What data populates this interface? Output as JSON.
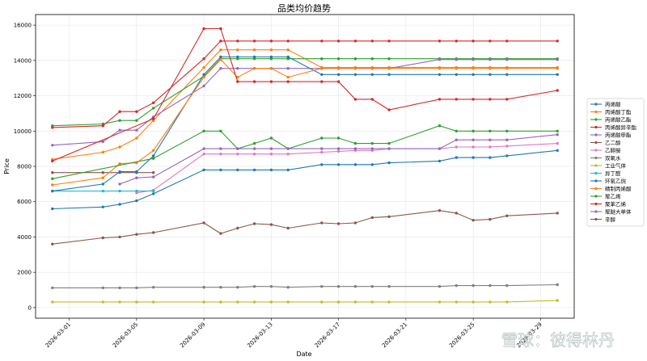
{
  "chart_data": {
    "type": "line",
    "title": "品类均价趋势",
    "xlabel": "Date",
    "ylabel": "Price",
    "ylim": [
      -600,
      16600
    ],
    "xlim": [
      "2026-02-27",
      "2026-03-31"
    ],
    "yticks": [
      0,
      2000,
      4000,
      6000,
      8000,
      10000,
      12000,
      14000,
      16000
    ],
    "xticks": [
      "2026-03-01",
      "2026-03-05",
      "2026-03-09",
      "2026-03-13",
      "2026-03-17",
      "2026-03-21",
      "2026-03-25",
      "2026-03-29"
    ],
    "grid": true,
    "legend_position": "right",
    "series": [
      {
        "name": "丙烯酸",
        "color": "#1f77b4",
        "x": [
          "2026-02-28",
          "2026-03-03",
          "2026-03-04",
          "2026-03-05",
          "2026-03-06",
          "2026-03-09",
          "2026-03-10",
          "2026-03-11",
          "2026-03-12",
          "2026-03-13",
          "2026-03-14",
          "2026-03-16",
          "2026-03-17",
          "2026-03-18",
          "2026-03-19",
          "2026-03-20",
          "2026-03-23",
          "2026-03-24",
          "2026-03-25",
          "2026-03-26",
          "2026-03-27",
          "2026-03-30"
        ],
        "y": [
          5600,
          5700,
          5850,
          6050,
          6450,
          7800,
          7800,
          7800,
          7800,
          7800,
          7800,
          8100,
          8100,
          8100,
          8100,
          8200,
          8300,
          8500,
          8500,
          8500,
          8600,
          8900
        ]
      },
      {
        "name": "丙烯酸丁酯",
        "color": "#ff7f0e",
        "x": [
          "2026-02-28",
          "2026-03-03",
          "2026-03-04",
          "2026-03-05",
          "2026-03-06",
          "2026-03-09",
          "2026-03-10",
          "2026-03-11",
          "2026-03-12",
          "2026-03-13",
          "2026-03-14",
          "2026-03-16",
          "2026-03-17",
          "2026-03-18",
          "2026-03-19",
          "2026-03-20",
          "2026-03-23",
          "2026-03-24",
          "2026-03-25",
          "2026-03-26",
          "2026-03-27",
          "2026-03-30"
        ],
        "y": [
          8400,
          8800,
          9100,
          9600,
          10600,
          13600,
          14600,
          14600,
          14600,
          14600,
          14600,
          13600,
          13600,
          13600,
          13600,
          13600,
          13600,
          13600,
          13600,
          13600,
          13600,
          13600
        ]
      },
      {
        "name": "丙烯酸乙酯",
        "color": "#2ca02c",
        "x": [
          "2026-02-28",
          "2026-03-03",
          "2026-03-04",
          "2026-03-05",
          "2026-03-06",
          "2026-03-09",
          "2026-03-10",
          "2026-03-11",
          "2026-03-12",
          "2026-03-13",
          "2026-03-14",
          "2026-03-16",
          "2026-03-17",
          "2026-03-18",
          "2026-03-19",
          "2026-03-20",
          "2026-03-23",
          "2026-03-24",
          "2026-03-25",
          "2026-03-26",
          "2026-03-27",
          "2026-03-30"
        ],
        "y": [
          10300,
          10400,
          10600,
          10600,
          11300,
          13100,
          14100,
          14100,
          14100,
          14100,
          14100,
          14100,
          14100,
          14100,
          14100,
          14100,
          14100,
          14100,
          14100,
          14100,
          14100,
          14100
        ]
      },
      {
        "name": "丙烯酸异辛酯",
        "color": "#d62728",
        "x": [
          "2026-02-28",
          "2026-03-03",
          "2026-03-04",
          "2026-03-05",
          "2026-03-06",
          "2026-03-09",
          "2026-03-10",
          "2026-03-11",
          "2026-03-12",
          "2026-03-13",
          "2026-03-14",
          "2026-03-16",
          "2026-03-17",
          "2026-03-18",
          "2026-03-19",
          "2026-03-20",
          "2026-03-23",
          "2026-03-24",
          "2026-03-25",
          "2026-03-26",
          "2026-03-27",
          "2026-03-30"
        ],
        "y": [
          10200,
          10300,
          11100,
          11100,
          11600,
          14100,
          15100,
          15100,
          15100,
          15100,
          15100,
          15100,
          15100,
          15100,
          15100,
          15100,
          15100,
          15100,
          15100,
          15100,
          15100,
          15100
        ]
      },
      {
        "name": "丙烯酸甲酯",
        "color": "#9467bd",
        "x": [
          "2026-02-28",
          "2026-03-03",
          "2026-03-04",
          "2026-03-05",
          "2026-03-06",
          "2026-03-09",
          "2026-03-10",
          "2026-03-11",
          "2026-03-12",
          "2026-03-13",
          "2026-03-14",
          "2026-03-16",
          "2026-03-17",
          "2026-03-18",
          "2026-03-19",
          "2026-03-20",
          "2026-03-23",
          "2026-03-24",
          "2026-03-25",
          "2026-03-26",
          "2026-03-27",
          "2026-03-30"
        ],
        "y": [
          9200,
          9400,
          10050,
          10050,
          10800,
          12550,
          13550,
          13550,
          13550,
          13550,
          13550,
          13550,
          13550,
          13550,
          13550,
          13550,
          14050,
          14050,
          14050,
          14050,
          14050,
          14050
        ]
      },
      {
        "name": "乙二醇",
        "color": "#8c564b",
        "x": [
          "2026-02-28",
          "2026-03-03",
          "2026-03-04",
          "2026-03-05",
          "2026-03-06"
        ],
        "y": [
          7650,
          7650,
          7650,
          7650,
          7650
        ]
      },
      {
        "name": "乙醇胺",
        "color": "#e377c2",
        "x": [
          "2026-03-05",
          "2026-03-06",
          "2026-03-09",
          "2026-03-10",
          "2026-03-11",
          "2026-03-12",
          "2026-03-13",
          "2026-03-14",
          "2026-03-16",
          "2026-03-17",
          "2026-03-18",
          "2026-03-19",
          "2026-03-20",
          "2026-03-23",
          "2026-03-24",
          "2026-03-25",
          "2026-03-26",
          "2026-03-27",
          "2026-03-30"
        ],
        "y": [
          6500,
          6650,
          8700,
          8700,
          8700,
          8700,
          8700,
          8700,
          8800,
          8850,
          8900,
          8900,
          9000,
          9000,
          9100,
          9100,
          9100,
          9150,
          9300
        ]
      },
      {
        "name": "双氧水",
        "color": "#7f7f7f",
        "x": [
          "2026-02-28",
          "2026-03-03",
          "2026-03-04",
          "2026-03-05",
          "2026-03-06",
          "2026-03-09",
          "2026-03-10",
          "2026-03-11",
          "2026-03-12",
          "2026-03-13",
          "2026-03-14",
          "2026-03-16",
          "2026-03-17",
          "2026-03-18",
          "2026-03-19",
          "2026-03-20",
          "2026-03-23",
          "2026-03-24",
          "2026-03-25",
          "2026-03-26",
          "2026-03-27",
          "2026-03-30"
        ],
        "y": [
          1120,
          1120,
          1120,
          1120,
          1150,
          1150,
          1150,
          1150,
          1200,
          1200,
          1150,
          1200,
          1200,
          1200,
          1200,
          1200,
          1200,
          1250,
          1250,
          1250,
          1250,
          1300
        ]
      },
      {
        "name": "工业气体",
        "color": "#bcbd22",
        "x": [
          "2026-02-28",
          "2026-03-03",
          "2026-03-04",
          "2026-03-05",
          "2026-03-06",
          "2026-03-09",
          "2026-03-10",
          "2026-03-11",
          "2026-03-12",
          "2026-03-13",
          "2026-03-14",
          "2026-03-16",
          "2026-03-17",
          "2026-03-18",
          "2026-03-19",
          "2026-03-20",
          "2026-03-23",
          "2026-03-24",
          "2026-03-25",
          "2026-03-26",
          "2026-03-27",
          "2026-03-30"
        ],
        "y": [
          320,
          320,
          320,
          320,
          320,
          320,
          320,
          320,
          320,
          320,
          320,
          320,
          320,
          320,
          320,
          320,
          320,
          320,
          320,
          320,
          320,
          400
        ]
      },
      {
        "name": "异丁醛",
        "color": "#17becf",
        "x": [
          "2026-02-28",
          "2026-03-03",
          "2026-03-04",
          "2026-03-05",
          "2026-03-06"
        ],
        "y": [
          6600,
          6600,
          6600,
          6600,
          6600
        ]
      },
      {
        "name": "环氧乙烷",
        "color": "#1f77b4",
        "x": [
          "2026-02-28",
          "2026-03-03",
          "2026-03-04",
          "2026-03-05",
          "2026-03-06",
          "2026-03-09",
          "2026-03-10",
          "2026-03-11",
          "2026-03-12",
          "2026-03-13",
          "2026-03-14",
          "2026-03-16",
          "2026-03-17",
          "2026-03-18",
          "2026-03-19",
          "2026-03-20",
          "2026-03-23",
          "2026-03-24",
          "2026-03-25",
          "2026-03-26",
          "2026-03-27",
          "2026-03-30"
        ],
        "y": [
          6600,
          7000,
          7700,
          7700,
          8600,
          13200,
          14200,
          14200,
          14200,
          14200,
          14200,
          13200,
          13200,
          13200,
          13200,
          13200,
          13200,
          13200,
          13200,
          13200,
          13200,
          13200
        ]
      },
      {
        "name": "精制丙烯酸",
        "color": "#ff7f0e",
        "x": [
          "2026-02-28",
          "2026-03-03",
          "2026-03-04",
          "2026-03-05",
          "2026-03-06",
          "2026-03-09",
          "2026-03-10",
          "2026-03-11",
          "2026-03-12",
          "2026-03-13",
          "2026-03-14",
          "2026-03-16",
          "2026-03-17",
          "2026-03-18",
          "2026-03-19",
          "2026-03-20",
          "2026-03-23",
          "2026-03-24",
          "2026-03-25",
          "2026-03-26",
          "2026-03-27",
          "2026-03-30"
        ],
        "y": [
          6950,
          7350,
          8150,
          8200,
          8900,
          13050,
          14050,
          13050,
          13550,
          13550,
          13050,
          13550,
          13550,
          13550,
          13550,
          13550,
          13550,
          13550,
          13550,
          13550,
          13550,
          13550
        ]
      },
      {
        "name": "聚乙烯",
        "color": "#2ca02c",
        "x": [
          "2026-02-28",
          "2026-03-06",
          "2026-03-09",
          "2026-03-10",
          "2026-03-11",
          "2026-03-12",
          "2026-03-13",
          "2026-03-14",
          "2026-03-16",
          "2026-03-17",
          "2026-03-18",
          "2026-03-19",
          "2026-03-20",
          "2026-03-23",
          "2026-03-24",
          "2026-03-25",
          "2026-03-26",
          "2026-03-27",
          "2026-03-30"
        ],
        "y": [
          7300,
          8450,
          10000,
          10000,
          9000,
          9300,
          9600,
          9000,
          9600,
          9600,
          9300,
          9300,
          9300,
          10300,
          10000,
          10000,
          10000,
          10000,
          10000
        ]
      },
      {
        "name": "聚苯乙烯",
        "color": "#d62728",
        "x": [
          "2026-02-28",
          "2026-03-06",
          "2026-03-09",
          "2026-03-10",
          "2026-03-11",
          "2026-03-12",
          "2026-03-13",
          "2026-03-14",
          "2026-03-16",
          "2026-03-17",
          "2026-03-18",
          "2026-03-19",
          "2026-03-20",
          "2026-03-23",
          "2026-03-24",
          "2026-03-25",
          "2026-03-26",
          "2026-03-27",
          "2026-03-30"
        ],
        "y": [
          8300,
          10700,
          15800,
          15800,
          12800,
          12800,
          12800,
          12800,
          12800,
          12800,
          11800,
          11800,
          11200,
          11800,
          11800,
          11800,
          11800,
          11800,
          12300
        ]
      },
      {
        "name": "聚醚大单体",
        "color": "#9467bd",
        "x": [
          "2026-03-04",
          "2026-03-05",
          "2026-03-06",
          "2026-03-09",
          "2026-03-10",
          "2026-03-11",
          "2026-03-12",
          "2026-03-13",
          "2026-03-14",
          "2026-03-16",
          "2026-03-17",
          "2026-03-18",
          "2026-03-19",
          "2026-03-20",
          "2026-03-23",
          "2026-03-24",
          "2026-03-25",
          "2026-03-26",
          "2026-03-27",
          "2026-03-30"
        ],
        "y": [
          7000,
          7350,
          7400,
          9000,
          9000,
          9000,
          9000,
          9000,
          9000,
          9000,
          9000,
          9000,
          9000,
          9000,
          9000,
          9500,
          9500,
          9500,
          9500,
          9800
        ]
      },
      {
        "name": "辛醇",
        "color": "#8c564b",
        "x": [
          "2026-02-28",
          "2026-03-03",
          "2026-03-04",
          "2026-03-05",
          "2026-03-06",
          "2026-03-09",
          "2026-03-10",
          "2026-03-11",
          "2026-03-12",
          "2026-03-13",
          "2026-03-14",
          "2026-03-16",
          "2026-03-17",
          "2026-03-18",
          "2026-03-19",
          "2026-03-20",
          "2026-03-23",
          "2026-03-24",
          "2026-03-25",
          "2026-03-26",
          "2026-03-27",
          "2026-03-30"
        ],
        "y": [
          3600,
          3950,
          4000,
          4150,
          4250,
          4800,
          4200,
          4500,
          4750,
          4700,
          4500,
          4800,
          4750,
          4800,
          5100,
          5150,
          5500,
          5350,
          4950,
          5000,
          5200,
          5350
        ]
      }
    ]
  },
  "watermark": {
    "text": "雪球：彼得林丹"
  }
}
